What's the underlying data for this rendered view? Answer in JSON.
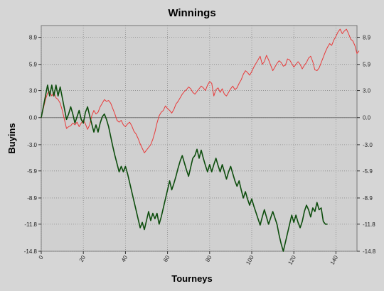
{
  "chart_data": {
    "type": "line",
    "title": "Winnings",
    "xlabel": "Tourneys",
    "ylabel": "Buyins",
    "xlim": [
      0,
      150
    ],
    "ylim": [
      -14.8,
      10.2
    ],
    "x_ticks": [
      "0",
      "20",
      "40",
      "60",
      "80",
      "100",
      "120",
      "140"
    ],
    "y_ticks": [
      "8.9",
      "5.9",
      "3.0",
      "0.0",
      "-3.0",
      "-5.9",
      "-8.9",
      "-11.8",
      "-14.8"
    ],
    "y_tick_values": [
      8.9,
      5.9,
      3.0,
      0.0,
      -3.0,
      -5.9,
      -8.9,
      -11.8,
      -14.8
    ],
    "grid": true,
    "series": [
      {
        "color": "#e83a3a",
        "values": [
          0.0,
          1.0,
          2.0,
          2.7,
          2.9,
          2.4,
          2.8,
          2.2,
          2.0,
          1.6,
          0.8,
          -0.2,
          -1.2,
          -1.0,
          -0.9,
          -0.6,
          -0.8,
          -0.5,
          -1.0,
          -0.6,
          -0.3,
          -0.7,
          -1.3,
          -0.8,
          0.2,
          0.8,
          0.4,
          0.6,
          1.2,
          1.6,
          2.0,
          1.8,
          1.9,
          1.6,
          1.0,
          0.4,
          -0.3,
          -0.5,
          -0.3,
          -0.8,
          -1.0,
          -0.7,
          -0.5,
          -0.9,
          -1.5,
          -1.8,
          -2.3,
          -2.9,
          -3.4,
          -3.9,
          -3.6,
          -3.3,
          -3.0,
          -2.4,
          -1.6,
          -0.6,
          0.2,
          0.6,
          0.8,
          1.3,
          1.0,
          0.8,
          0.5,
          0.9,
          1.5,
          1.8,
          2.2,
          2.6,
          2.9,
          3.1,
          3.4,
          3.2,
          2.8,
          2.6,
          2.9,
          3.2,
          3.5,
          3.3,
          3.0,
          3.6,
          4.0,
          3.8,
          2.4,
          3.1,
          3.3,
          2.8,
          3.2,
          2.6,
          2.4,
          2.8,
          3.2,
          3.5,
          3.1,
          3.3,
          3.8,
          4.2,
          4.8,
          5.2,
          5.0,
          4.7,
          5.1,
          5.6,
          6.0,
          6.4,
          6.8,
          5.9,
          6.2,
          6.9,
          6.4,
          5.8,
          5.2,
          5.6,
          6.0,
          6.3,
          6.1,
          5.7,
          5.8,
          6.5,
          6.4,
          6.0,
          5.6,
          5.9,
          6.2,
          5.9,
          5.4,
          5.8,
          6.1,
          6.6,
          6.8,
          6.2,
          5.3,
          5.2,
          5.5,
          6.1,
          6.7,
          7.3,
          7.8,
          8.2,
          8.0,
          8.6,
          9.0,
          9.5,
          9.8,
          9.3,
          9.6,
          9.8,
          9.3,
          8.7,
          8.5,
          8.0,
          7.1,
          7.4
        ]
      },
      {
        "color": "#0d4d0d",
        "values": [
          0.0,
          1.2,
          2.4,
          3.6,
          2.4,
          3.6,
          2.4,
          3.6,
          2.4,
          3.4,
          2.2,
          1.0,
          -0.2,
          0.4,
          1.2,
          0.4,
          -0.6,
          0.1,
          0.8,
          -0.2,
          -0.6,
          0.6,
          1.2,
          0.2,
          -0.7,
          -1.6,
          -0.8,
          -1.6,
          -0.6,
          0.1,
          0.4,
          -0.2,
          -1.0,
          -2.1,
          -3.2,
          -4.2,
          -5.1,
          -6.0,
          -5.4,
          -6.0,
          -5.4,
          -6.2,
          -7.2,
          -8.2,
          -9.2,
          -10.2,
          -11.2,
          -12.2,
          -11.6,
          -12.4,
          -11.4,
          -10.4,
          -11.4,
          -10.6,
          -11.2,
          -10.6,
          -11.8,
          -11.0,
          -10.0,
          -9.0,
          -8.0,
          -7.0,
          -8.0,
          -7.3,
          -6.5,
          -5.6,
          -4.8,
          -4.2,
          -5.0,
          -5.8,
          -6.5,
          -5.5,
          -4.5,
          -4.2,
          -3.5,
          -4.5,
          -3.6,
          -4.5,
          -5.3,
          -6.0,
          -5.2,
          -6.0,
          -5.2,
          -4.5,
          -5.3,
          -6.0,
          -5.2,
          -6.0,
          -6.8,
          -6.0,
          -5.4,
          -6.2,
          -7.0,
          -7.6,
          -7.0,
          -8.0,
          -8.9,
          -8.2,
          -9.0,
          -9.7,
          -9.0,
          -9.8,
          -10.5,
          -11.2,
          -11.9,
          -11.0,
          -10.2,
          -11.0,
          -11.8,
          -11.1,
          -10.4,
          -11.1,
          -11.8,
          -13.0,
          -14.0,
          -14.8,
          -13.8,
          -12.8,
          -11.8,
          -10.8,
          -11.6,
          -10.8,
          -11.6,
          -12.2,
          -11.5,
          -10.4,
          -9.7,
          -10.2,
          -11.0,
          -10.0,
          -10.4,
          -9.4,
          -10.2,
          -10.0,
          -11.5,
          -11.8,
          -11.8
        ]
      }
    ]
  }
}
